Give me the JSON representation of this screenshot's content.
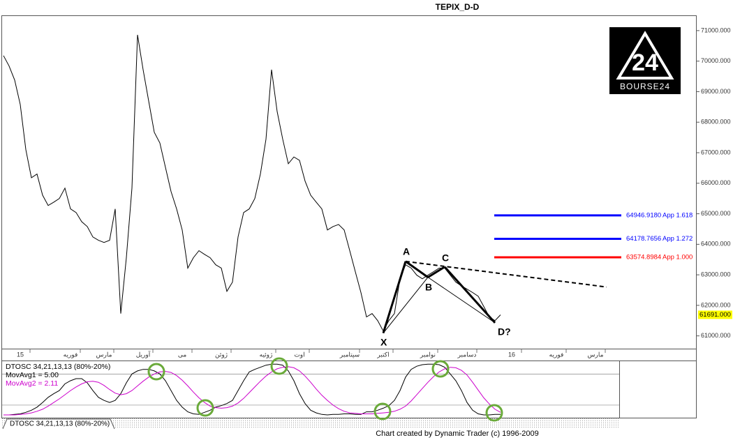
{
  "title": "TEPIX_D-D",
  "logo": "BOURSE24",
  "footer": "Chart created by Dynamic Trader  (c) 1996-2009",
  "chart_data": [
    {
      "type": "line",
      "color": "#000000",
      "categories": [
        null,
        null,
        null,
        "15",
        null,
        null,
        null,
        null,
        null,
        null,
        null,
        null,
        "فوریه",
        null,
        null,
        null,
        null,
        null,
        "مارس",
        null,
        null,
        null,
        null,
        null,
        null,
        "آوریل",
        null,
        null,
        null,
        null,
        null,
        null,
        "می",
        null,
        null,
        null,
        null,
        null,
        null,
        "ژوئن",
        null,
        null,
        null,
        null,
        null,
        null,
        null,
        "ژوئیه",
        null,
        null,
        null,
        null,
        null,
        "اوت",
        null,
        null,
        null,
        null,
        null,
        null,
        null,
        null,
        "سپتامبر",
        null,
        null,
        null,
        null,
        null,
        "اکتبر",
        null,
        null,
        null,
        null,
        null,
        null,
        null,
        "نوامبر",
        null,
        null,
        null,
        null,
        null,
        null,
        "دسامبر",
        null,
        null,
        null,
        null,
        null,
        null,
        null,
        "16",
        null,
        null,
        null,
        null,
        null,
        null,
        null,
        "فوریه",
        null,
        null,
        null,
        null,
        null,
        null,
        "مارس",
        null,
        null,
        null,
        null
      ],
      "values": [
        70180,
        69840,
        69380,
        68580,
        67100,
        66180,
        66300,
        65610,
        65270,
        65380,
        65500,
        65840,
        65160,
        65040,
        64740,
        64580,
        64240,
        64130,
        64060,
        64130,
        65160,
        61730,
        63560,
        65840,
        70860,
        69720,
        68690,
        67670,
        67320,
        66520,
        65730,
        65160,
        64470,
        63220,
        63560,
        63790,
        63670,
        63560,
        63330,
        63220,
        62460,
        62760,
        64240,
        65040,
        65160,
        65500,
        66300,
        67440,
        69720,
        68350,
        67440,
        66640,
        66860,
        66750,
        66070,
        65610,
        65380,
        65160,
        64470,
        64580,
        64650,
        64470,
        63790,
        63100,
        62420,
        61620,
        61730,
        61500,
        61160,
        61500,
        61730,
        62870,
        63330,
        63220,
        62990,
        62870,
        62990,
        63100,
        63220,
        63220,
        62990,
        62760,
        62640,
        62530,
        62420,
        62300,
        61960,
        61620,
        61500,
        61690,
        null,
        null,
        null,
        null,
        null,
        null,
        null,
        null,
        null,
        null,
        null,
        null,
        null,
        null,
        null,
        null,
        null,
        null,
        null,
        null,
        null
      ],
      "ylim": [
        60650,
        71500
      ],
      "yticks": [
        {
          "value": 61000,
          "label": "61000.000"
        },
        {
          "value": 62000,
          "label": "62000.000"
        },
        {
          "value": 63000,
          "label": "63000.000"
        },
        {
          "value": 64000,
          "label": "64000.000"
        },
        {
          "value": 65000,
          "label": "65000.000"
        },
        {
          "value": 66000,
          "label": "66000.000"
        },
        {
          "value": 67000,
          "label": "67000.000"
        },
        {
          "value": 68000,
          "label": "68000.000"
        },
        {
          "value": 69000,
          "label": "69000.000"
        },
        {
          "value": 70000,
          "label": "70000.000"
        },
        {
          "value": 71000,
          "label": "71000.000"
        }
      ],
      "last_value": {
        "value": 61691,
        "label": "61691.000"
      },
      "levels": [
        {
          "value": 64946.918,
          "label": "64946.9180",
          "text": "App 1.618",
          "color": "#0000ff"
        },
        {
          "value": 64178.7656,
          "label": "64178.7656",
          "text": "App 1.272",
          "color": "#0000ff"
        },
        {
          "value": 63574.8984,
          "label": "63574.8984",
          "text": "App 1.000",
          "color": "#ff0000"
        }
      ],
      "pattern": {
        "points": [
          {
            "label": "X",
            "index": 68,
            "value": 61090
          },
          {
            "label": "A",
            "index": 72,
            "value": 63440
          },
          {
            "label": "B",
            "index": 76,
            "value": 62920
          },
          {
            "label": "C",
            "index": 79,
            "value": 63260
          },
          {
            "label": "D?",
            "index": 88,
            "value": 61430
          }
        ],
        "trendline": {
          "index": [
            72,
            108
          ],
          "values": [
            63440,
            62600
          ]
        }
      }
    },
    {
      "type": "line",
      "title": "DTOSC 34,21,13,13 (80%-20%)",
      "tab_label": "DTOSC 34,21,13,13 (80%-20%)",
      "ylim": [
        -3,
        102
      ],
      "reference_lines": [
        80,
        20
      ],
      "series": [
        {
          "name": "MovAvg1 = 5.00",
          "color": "#000000",
          "values": [
            1,
            1,
            2,
            3,
            6,
            10,
            16,
            25,
            35,
            42,
            48,
            61,
            67,
            71,
            71,
            63,
            48,
            35,
            29,
            25,
            29,
            42,
            63,
            80,
            86,
            89,
            89,
            86,
            80,
            67,
            48,
            29,
            16,
            7,
            3,
            2,
            6,
            10,
            16,
            19,
            23,
            29,
            48,
            67,
            84,
            89,
            93,
            97,
            99,
            99,
            97,
            86,
            67,
            42,
            23,
            10,
            5,
            2,
            1,
            2,
            2,
            3,
            3,
            2,
            2,
            7,
            7,
            10,
            14,
            19,
            29,
            48,
            74,
            89,
            95,
            98,
            99,
            99,
            98,
            93,
            80,
            67,
            48,
            25,
            10,
            3,
            1,
            1,
            2,
            2,
            null,
            null,
            null,
            null,
            null,
            null,
            null,
            null,
            null,
            null,
            null,
            null,
            null,
            null,
            null,
            null,
            null,
            null,
            null,
            null,
            null
          ]
        },
        {
          "name": "MovAvg2 = 2.11",
          "color": "#cc00cc",
          "values": [
            1,
            1,
            1,
            2,
            3,
            5,
            8,
            12,
            18,
            25,
            32,
            40,
            48,
            55,
            61,
            65,
            66,
            64,
            58,
            50,
            43,
            40,
            42,
            48,
            57,
            66,
            74,
            80,
            84,
            85,
            83,
            77,
            68,
            57,
            45,
            34,
            25,
            18,
            15,
            14,
            15,
            18,
            24,
            33,
            44,
            55,
            66,
            76,
            84,
            90,
            93,
            94,
            92,
            86,
            76,
            64,
            51,
            39,
            29,
            20,
            13,
            8,
            5,
            4,
            3,
            3,
            3,
            4,
            5,
            6,
            8,
            12,
            18,
            28,
            40,
            52,
            64,
            75,
            84,
            90,
            93,
            92,
            87,
            78,
            64,
            49,
            34,
            22,
            12,
            6,
            null,
            null,
            null,
            null,
            null,
            null,
            null,
            null,
            null,
            null,
            null,
            null,
            null,
            null,
            null,
            null,
            null,
            null,
            null,
            null,
            null
          ]
        }
      ]
    }
  ]
}
